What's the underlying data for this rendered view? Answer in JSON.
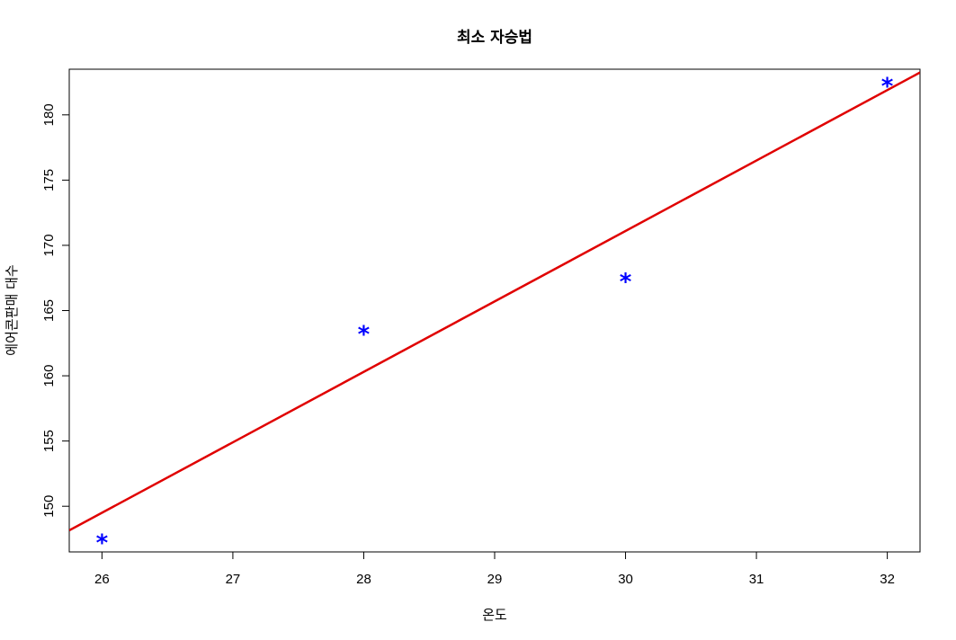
{
  "chart_data": {
    "type": "scatter",
    "title": "최소 자승법",
    "xlabel": "온도",
    "ylabel": "에어콘판매 대수",
    "xlim": [
      25.75,
      32.25
    ],
    "ylim": [
      146.5,
      183.5
    ],
    "xticks": [
      "26",
      "27",
      "28",
      "29",
      "30",
      "31",
      "32"
    ],
    "yticks": [
      "150",
      "155",
      "160",
      "165",
      "170",
      "175",
      "180"
    ],
    "grid": false,
    "legend": "none",
    "points": {
      "marker": "*",
      "color": "#0000ff",
      "x": [
        26,
        28,
        30,
        32
      ],
      "y": [
        147.5,
        163.5,
        167.5,
        182.5
      ]
    },
    "fit_line": {
      "color": "#e00000",
      "slope": 5.4,
      "intercept": 9.1
    }
  }
}
